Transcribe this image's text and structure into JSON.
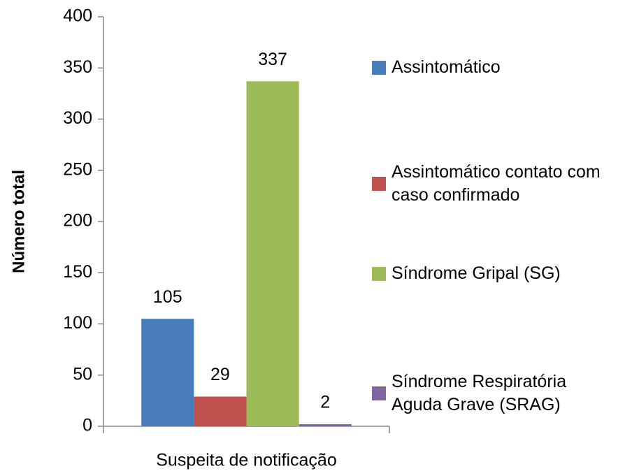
{
  "chart_data": {
    "type": "bar",
    "categories": [
      "Suspeita de notificação"
    ],
    "ylabel": "Número total",
    "ylim": [
      0,
      400
    ],
    "yticks": [
      0,
      50,
      100,
      150,
      200,
      250,
      300,
      350,
      400
    ],
    "legend": "right",
    "series": [
      {
        "name": "Assintomático",
        "color": "#4a7ebb",
        "values": [
          105
        ]
      },
      {
        "name": "Assintomático contato com caso confirmado",
        "color": "#c0504d",
        "values": [
          29
        ]
      },
      {
        "name": "Síndrome Gripal (SG)",
        "color": "#9bbb59",
        "values": [
          337
        ]
      },
      {
        "name": "Síndrome Respiratória Aguda Grave (SRAG)",
        "color": "#8064a2",
        "values": [
          2
        ]
      }
    ]
  }
}
